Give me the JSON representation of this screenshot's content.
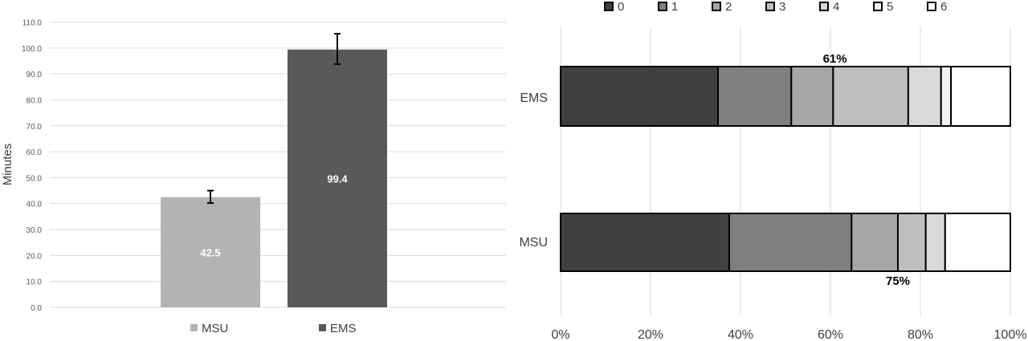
{
  "chart_data": [
    {
      "type": "bar",
      "ylabel": "Minutes",
      "ylim": [
        0,
        110
      ],
      "y_ticks": [
        "0.0",
        "10.0",
        "20.0",
        "30.0",
        "40.0",
        "50.0",
        "60.0",
        "70.0",
        "80.0",
        "90.0",
        "100.0",
        "110.0"
      ],
      "grid": true,
      "legend": "bottom",
      "categories": [
        "MSU",
        "EMS"
      ],
      "values": [
        42.5,
        99.4
      ],
      "value_labels": [
        "42.5",
        "99.4"
      ],
      "error": [
        [
          40.2,
          45.0
        ],
        [
          93.8,
          105.5
        ]
      ],
      "colors": [
        "#b3b3b3",
        "#595959"
      ]
    },
    {
      "type": "bar",
      "orientation": "horizontal",
      "stacked": true,
      "percent": true,
      "categories": [
        "EMS",
        "MSU"
      ],
      "x_ticks": [
        "0%",
        "20%",
        "40%",
        "60%",
        "80%",
        "100%"
      ],
      "xlim": [
        0,
        100
      ],
      "grid": true,
      "legend": "top",
      "series": [
        {
          "name": "0",
          "color": "#404040",
          "values": [
            35,
            37.5
          ]
        },
        {
          "name": "1",
          "color": "#7f7f7f",
          "values": [
            16.3,
            27.2
          ]
        },
        {
          "name": "2",
          "color": "#a6a6a6",
          "values": [
            9.3,
            10.3
          ]
        },
        {
          "name": "3",
          "color": "#bfbfbf",
          "values": [
            16.7,
            6.2
          ]
        },
        {
          "name": "4",
          "color": "#d9d9d9",
          "values": [
            7.3,
            4.3
          ]
        },
        {
          "name": "5",
          "color": "#f2f2f2",
          "values": [
            2.2,
            0
          ]
        },
        {
          "name": "6",
          "color": "#ffffff",
          "values": [
            13.2,
            14.5
          ]
        }
      ],
      "annotations": [
        {
          "text": "61%",
          "category": "EMS",
          "value": 61
        },
        {
          "text": "75%",
          "category": "MSU",
          "value": 75
        }
      ]
    }
  ]
}
